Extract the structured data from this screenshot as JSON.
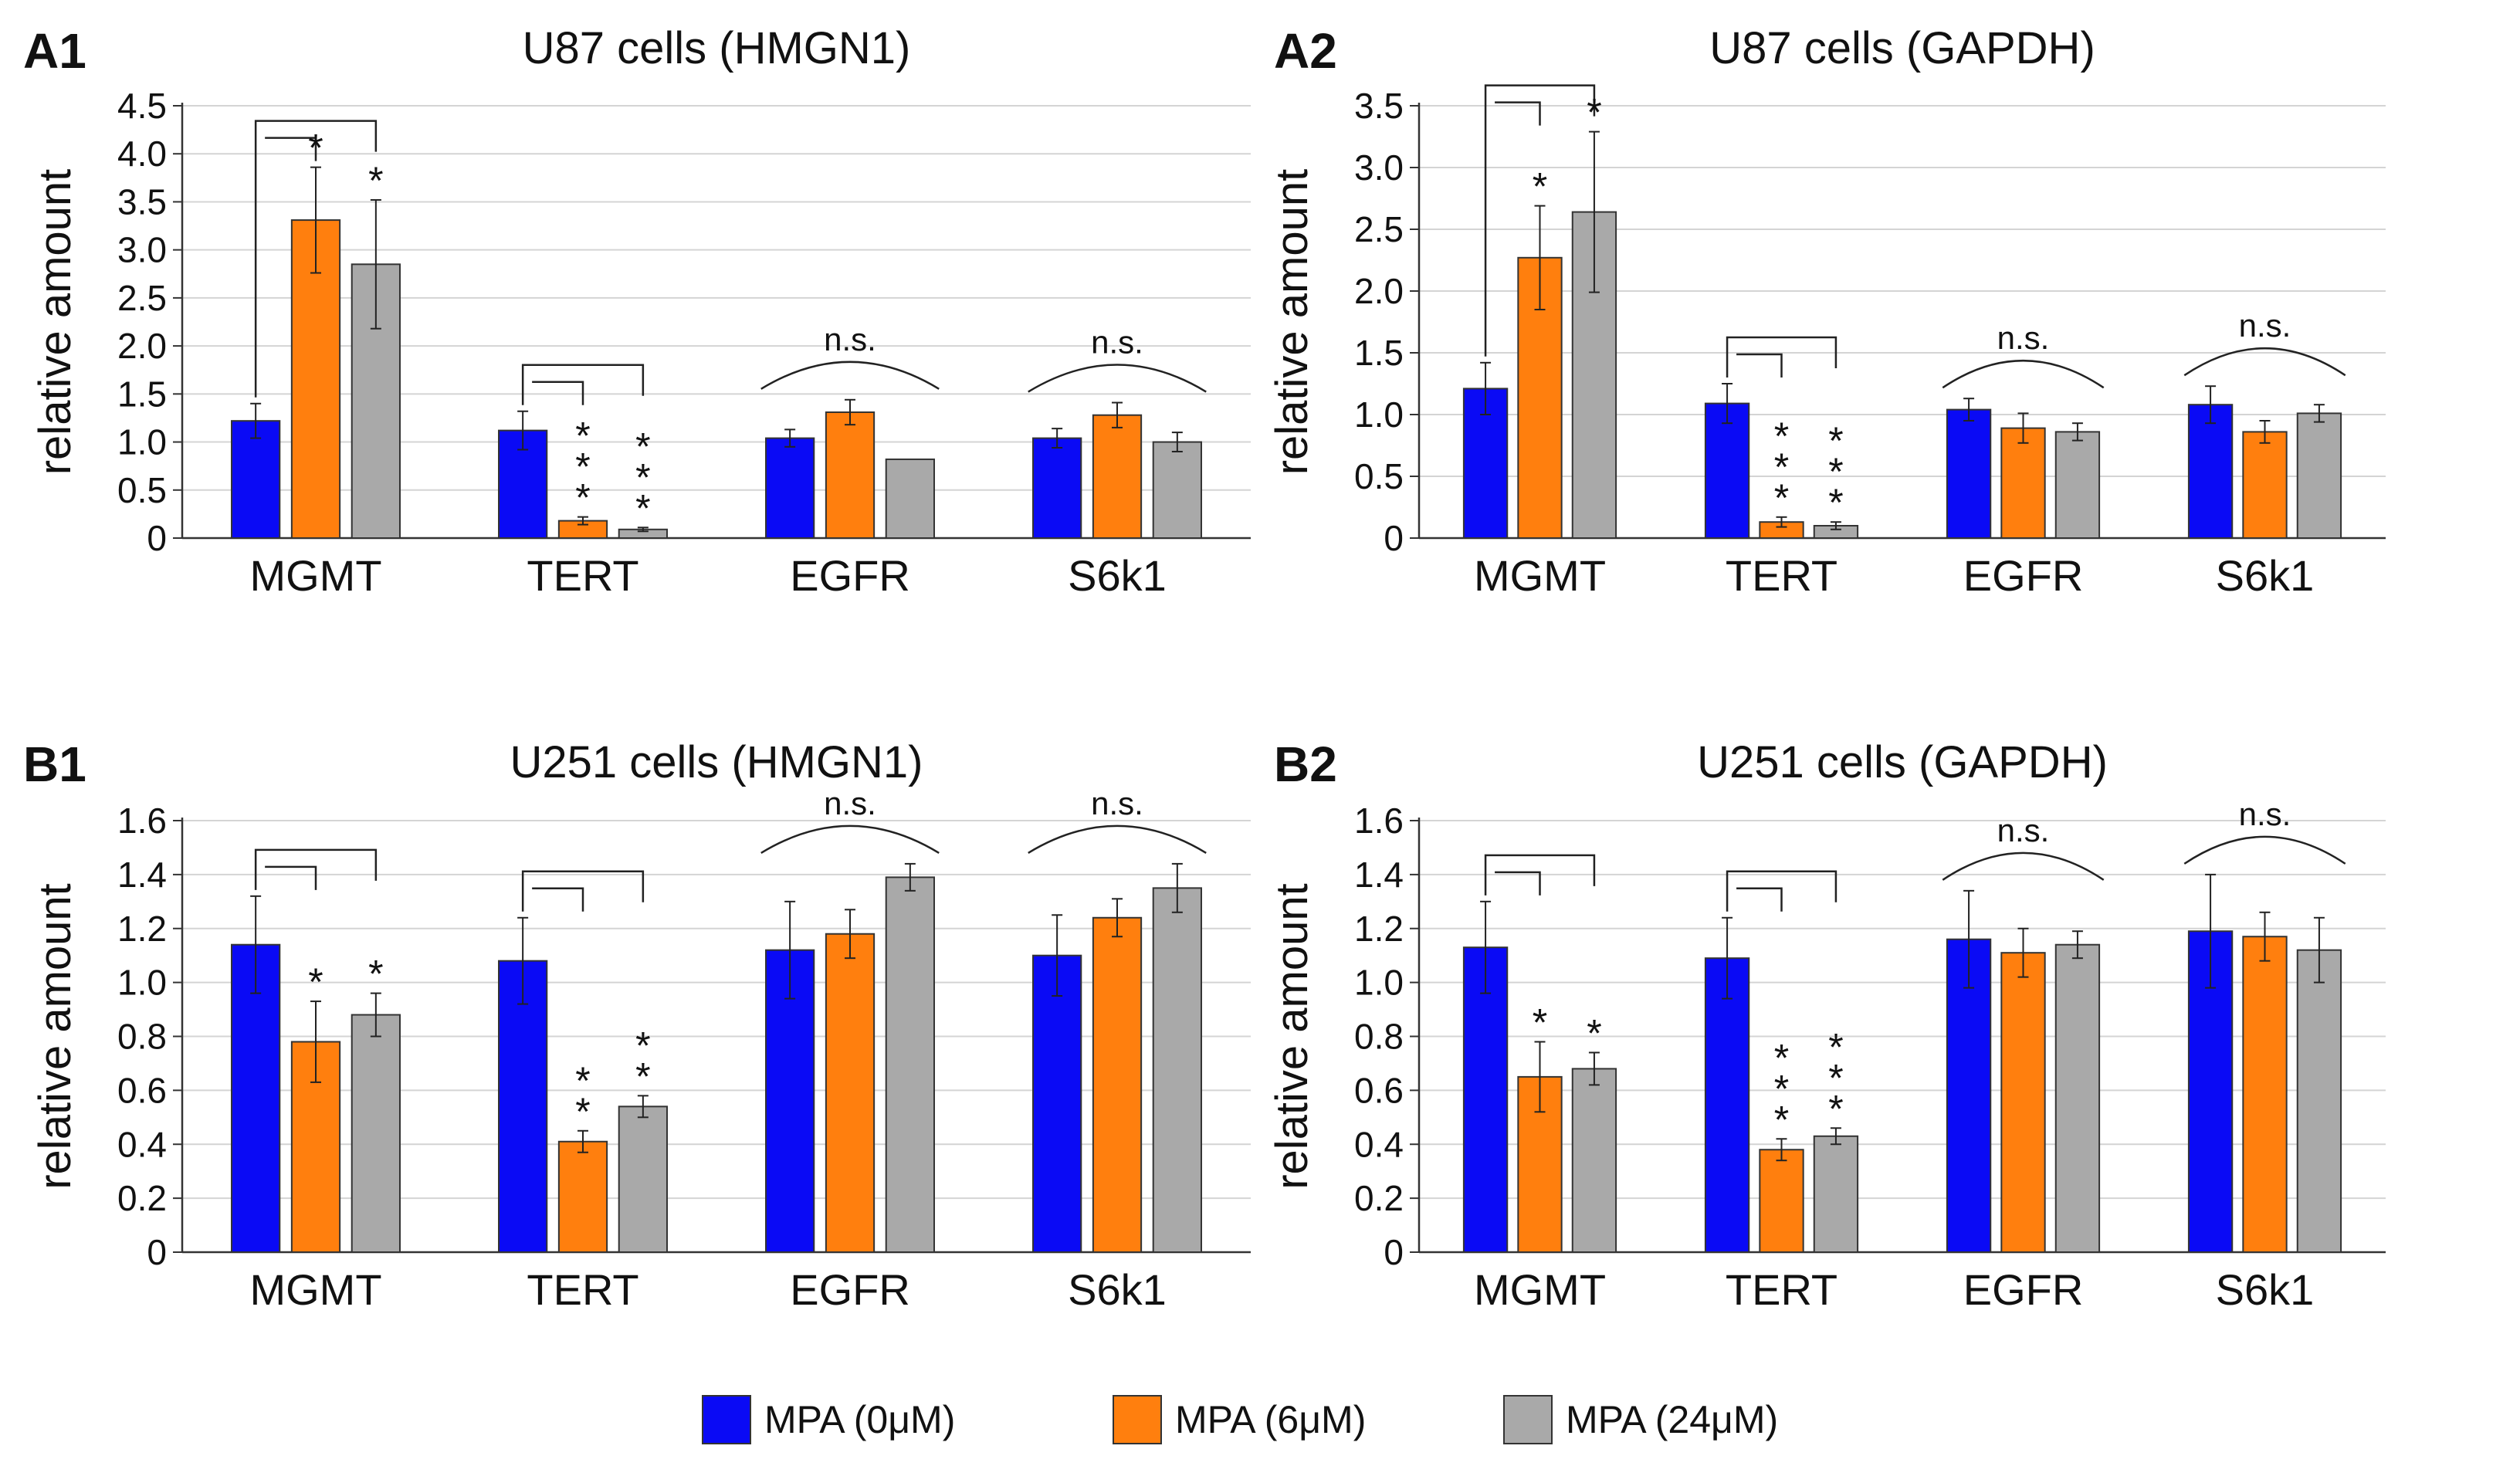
{
  "legend": {
    "entries": [
      "MPA (0μM)",
      "MPA (6μM)",
      "MPA (24μM)"
    ],
    "colors": [
      "#0a0af5",
      "#ff7f0e",
      "#a9a9a9"
    ],
    "placement": "bottom-center"
  },
  "chart_data": [
    {
      "type": "bar",
      "panel_label": "A1",
      "title": "U87 cells (HMGN1)",
      "xlabel": "",
      "ylabel": "relative amount",
      "ylim": [
        0,
        4.5
      ],
      "yticks": [
        0,
        0.5,
        1.0,
        1.5,
        2.0,
        2.5,
        3.0,
        3.5,
        4.0,
        4.5
      ],
      "ytick_labels": [
        "0",
        "0.5",
        "1.0",
        "1.5",
        "2.0",
        "2.5",
        "3.0",
        "3.5",
        "4.0",
        "4.5"
      ],
      "grid": true,
      "categories": [
        "MGMT",
        "TERT",
        "EGFR",
        "S6k1"
      ],
      "series": [
        {
          "name": "MPA (0μM)",
          "values": [
            1.22,
            1.12,
            1.04,
            1.04
          ],
          "errors": [
            0.18,
            0.2,
            0.09,
            0.1
          ]
        },
        {
          "name": "MPA (6μM)",
          "values": [
            3.31,
            0.18,
            1.31,
            1.28
          ],
          "errors": [
            0.55,
            0.04,
            0.13,
            0.13
          ]
        },
        {
          "name": "MPA (24μM)",
          "values": [
            2.85,
            0.09,
            0.82,
            1.0
          ],
          "errors": [
            0.67,
            0.02,
            0.0,
            0.1
          ]
        }
      ],
      "annotations": [
        {
          "category": "MGMT",
          "type": "bracket",
          "series": [
            0,
            1,
            2
          ],
          "marks": [
            "*",
            "*"
          ]
        },
        {
          "category": "TERT",
          "type": "bracket",
          "series": [
            0,
            1,
            2
          ],
          "marks": [
            "***",
            "***"
          ]
        },
        {
          "category": "EGFR",
          "type": "arc",
          "label": "n.s."
        },
        {
          "category": "S6k1",
          "type": "arc",
          "label": "n.s."
        }
      ]
    },
    {
      "type": "bar",
      "panel_label": "A2",
      "title": "U87 cells (GAPDH)",
      "xlabel": "",
      "ylabel": "relative amount",
      "ylim": [
        0,
        3.5
      ],
      "yticks": [
        0,
        0.5,
        1.0,
        1.5,
        2.0,
        2.5,
        3.0,
        3.5
      ],
      "ytick_labels": [
        "0",
        "0.5",
        "1.0",
        "1.5",
        "2.0",
        "2.5",
        "3.0",
        "3.5"
      ],
      "grid": true,
      "categories": [
        "MGMT",
        "TERT",
        "EGFR",
        "S6k1"
      ],
      "series": [
        {
          "name": "MPA (0μM)",
          "values": [
            1.21,
            1.09,
            1.04,
            1.08
          ],
          "errors": [
            0.21,
            0.16,
            0.09,
            0.15
          ]
        },
        {
          "name": "MPA (6μM)",
          "values": [
            2.27,
            0.13,
            0.89,
            0.86
          ],
          "errors": [
            0.42,
            0.04,
            0.12,
            0.09
          ]
        },
        {
          "name": "MPA (24μM)",
          "values": [
            2.64,
            0.1,
            0.86,
            1.01
          ],
          "errors": [
            0.65,
            0.03,
            0.07,
            0.07
          ]
        }
      ],
      "annotations": [
        {
          "category": "MGMT",
          "type": "bracket",
          "series": [
            0,
            1,
            2
          ],
          "marks": [
            "*",
            "*"
          ]
        },
        {
          "category": "TERT",
          "type": "bracket",
          "series": [
            0,
            1,
            2
          ],
          "marks": [
            "***",
            "***"
          ]
        },
        {
          "category": "EGFR",
          "type": "arc",
          "label": "n.s."
        },
        {
          "category": "S6k1",
          "type": "arc",
          "label": "n.s."
        }
      ]
    },
    {
      "type": "bar",
      "panel_label": "B1",
      "title": "U251 cells (HMGN1)",
      "xlabel": "",
      "ylabel": "relative amount",
      "ylim": [
        0,
        1.6
      ],
      "yticks": [
        0,
        0.2,
        0.4,
        0.6,
        0.8,
        1.0,
        1.2,
        1.4,
        1.6
      ],
      "ytick_labels": [
        "0",
        "0.2",
        "0.4",
        "0.6",
        "0.8",
        "1.0",
        "1.2",
        "1.4",
        "1.6"
      ],
      "grid": true,
      "categories": [
        "MGMT",
        "TERT",
        "EGFR",
        "S6k1"
      ],
      "series": [
        {
          "name": "MPA (0μM)",
          "values": [
            1.14,
            1.08,
            1.12,
            1.1
          ],
          "errors": [
            0.18,
            0.16,
            0.18,
            0.15
          ]
        },
        {
          "name": "MPA (6μM)",
          "values": [
            0.78,
            0.41,
            1.18,
            1.24
          ],
          "errors": [
            0.15,
            0.04,
            0.09,
            0.07
          ]
        },
        {
          "name": "MPA (24μM)",
          "values": [
            0.88,
            0.54,
            1.39,
            1.35
          ],
          "errors": [
            0.08,
            0.04,
            0.05,
            0.09
          ]
        }
      ],
      "annotations": [
        {
          "category": "MGMT",
          "type": "bracket",
          "series": [
            0,
            1,
            2
          ],
          "marks": [
            "*",
            "*"
          ]
        },
        {
          "category": "TERT",
          "type": "bracket",
          "series": [
            0,
            1,
            2
          ],
          "marks": [
            "**",
            "**"
          ]
        },
        {
          "category": "EGFR",
          "type": "arc",
          "label": "n.s."
        },
        {
          "category": "S6k1",
          "type": "arc",
          "label": "n.s."
        }
      ]
    },
    {
      "type": "bar",
      "panel_label": "B2",
      "title": "U251 cells (GAPDH)",
      "xlabel": "",
      "ylabel": "relative amount",
      "ylim": [
        0,
        1.6
      ],
      "yticks": [
        0,
        0.2,
        0.4,
        0.6,
        0.8,
        1.0,
        1.2,
        1.4,
        1.6
      ],
      "ytick_labels": [
        "0",
        "0.2",
        "0.4",
        "0.6",
        "0.8",
        "1.0",
        "1.2",
        "1.4",
        "1.6"
      ],
      "grid": true,
      "categories": [
        "MGMT",
        "TERT",
        "EGFR",
        "S6k1"
      ],
      "series": [
        {
          "name": "MPA (0μM)",
          "values": [
            1.13,
            1.09,
            1.16,
            1.19
          ],
          "errors": [
            0.17,
            0.15,
            0.18,
            0.21
          ]
        },
        {
          "name": "MPA (6μM)",
          "values": [
            0.65,
            0.38,
            1.11,
            1.17
          ],
          "errors": [
            0.13,
            0.04,
            0.09,
            0.09
          ]
        },
        {
          "name": "MPA (24μM)",
          "values": [
            0.68,
            0.43,
            1.14,
            1.12
          ],
          "errors": [
            0.06,
            0.03,
            0.05,
            0.12
          ]
        }
      ],
      "annotations": [
        {
          "category": "MGMT",
          "type": "bracket",
          "series": [
            0,
            1,
            2
          ],
          "marks": [
            "*",
            "*"
          ]
        },
        {
          "category": "TERT",
          "type": "bracket",
          "series": [
            0,
            1,
            2
          ],
          "marks": [
            "***",
            "***"
          ]
        },
        {
          "category": "EGFR",
          "type": "arc",
          "label": "n.s."
        },
        {
          "category": "S6k1",
          "type": "arc",
          "label": "n.s."
        }
      ]
    }
  ]
}
